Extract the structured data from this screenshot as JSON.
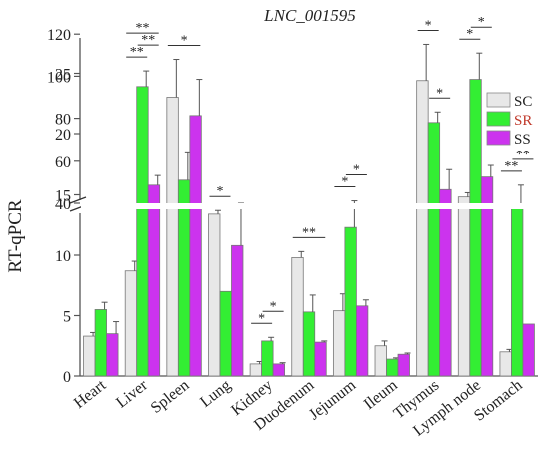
{
  "chart_data": {
    "type": "bar",
    "title": "LNC_001595",
    "xlabel": "",
    "ylabel": "RT-qPCR",
    "axis_break": {
      "lower_range": [
        0,
        28
      ],
      "upper_range": [
        40,
        120
      ]
    },
    "y_ticks_lower": [
      "0",
      "5",
      "10",
      "15",
      "20",
      "25"
    ],
    "y_ticks_upper": [
      "40",
      "60",
      "80",
      "100",
      "120"
    ],
    "categories": [
      "Heart",
      "Liver",
      "Spleen",
      "Lung",
      "Kidney",
      "Duodenum",
      "Jejunum",
      "Ileum",
      "Thymus",
      "Lymph node",
      "Stomach"
    ],
    "series": [
      {
        "name": "SC",
        "color": "#e8e8e8",
        "values": [
          3.3,
          8.7,
          90,
          13.4,
          1.0,
          9.8,
          5.4,
          2.5,
          24.4,
          43,
          2.0
        ],
        "errors": [
          0.3,
          0.8,
          18,
          0.3,
          0.2,
          0.5,
          1.4,
          0.4,
          3.0,
          2,
          0.2
        ]
      },
      {
        "name": "SR",
        "color": "#33ee33",
        "values": [
          5.5,
          23.9,
          51,
          7.0,
          2.9,
          5.3,
          12.3,
          1.4,
          78,
          98.5,
          14.0
        ],
        "errors": [
          0.6,
          1.3,
          13,
          0,
          0.3,
          1.4,
          2.2,
          0.1,
          5,
          12.5,
          1.8
        ]
      },
      {
        "name": "SS",
        "color": "#cc33ee",
        "values": [
          3.5,
          15.8,
          21.5,
          10.8,
          1.0,
          2.8,
          5.8,
          1.8,
          46.5,
          52.5,
          4.3
        ],
        "errors": [
          1.0,
          0.8,
          3.0,
          3.5,
          0.1,
          0.1,
          0.5,
          0.1,
          9.5,
          5.5,
          0
        ]
      }
    ],
    "significance": [
      {
        "category": "Liver",
        "from": "SC",
        "to": "SR",
        "label": "**"
      },
      {
        "category": "Liver",
        "from": "SR",
        "to": "SS",
        "label": "**"
      },
      {
        "category": "Liver",
        "from": "SC",
        "to": "SS",
        "label": "**"
      },
      {
        "category": "Spleen",
        "from": "SC",
        "to": "SS",
        "label": "*"
      },
      {
        "category": "Lung",
        "from": "SC",
        "to": "SR",
        "label": "*"
      },
      {
        "category": "Kidney",
        "from": "SC",
        "to": "SR",
        "label": "*"
      },
      {
        "category": "Kidney",
        "from": "SR",
        "to": "SS",
        "label": "*"
      },
      {
        "category": "Duodenum",
        "from": "SC",
        "to": "SS",
        "label": "**"
      },
      {
        "category": "Jejunum",
        "from": "SC",
        "to": "SR",
        "label": "*"
      },
      {
        "category": "Jejunum",
        "from": "SR",
        "to": "SS",
        "label": "*"
      },
      {
        "category": "Thymus",
        "from": "SC",
        "to": "SR",
        "label": "*"
      },
      {
        "category": "Thymus",
        "from": "SR",
        "to": "SS",
        "label": "*"
      },
      {
        "category": "Lymph node",
        "from": "SC",
        "to": "SR",
        "label": "*"
      },
      {
        "category": "Lymph node",
        "from": "SR",
        "to": "SS",
        "label": "*"
      },
      {
        "category": "Stomach",
        "from": "SC",
        "to": "SR",
        "label": "**"
      },
      {
        "category": "Stomach",
        "from": "SR",
        "to": "SS",
        "label": "**"
      }
    ],
    "legend": {
      "placement": "top-right"
    },
    "grid": false
  }
}
